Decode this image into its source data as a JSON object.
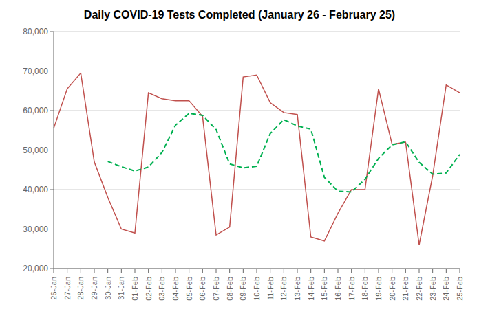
{
  "chart_data": {
    "type": "line",
    "title": "Daily COVID-19 Tests Completed (January 26 - February 25)",
    "categories": [
      "26-Jan",
      "27-Jan",
      "28-Jan",
      "29-Jan",
      "30-Jan",
      "31-Jan",
      "01-Feb",
      "02-Feb",
      "03-Feb",
      "04-Feb",
      "05-Feb",
      "06-Feb",
      "07-Feb",
      "08-Feb",
      "09-Feb",
      "10-Feb",
      "11-Feb",
      "12-Feb",
      "13-Feb",
      "14-Feb",
      "15-Feb",
      "16-Feb",
      "17-Feb",
      "18-Feb",
      "19-Feb",
      "20-Feb",
      "21-Feb",
      "22-Feb",
      "23-Feb",
      "24-Feb",
      "25-Feb"
    ],
    "series": [
      {
        "color": "#c0504d",
        "line_style": "solid",
        "values": [
          55500,
          65500,
          69500,
          47000,
          38000,
          30000,
          29000,
          64500,
          63000,
          62500,
          62500,
          58500,
          28500,
          30500,
          68500,
          69000,
          62000,
          59500,
          59000,
          28000,
          27000,
          34000,
          40000,
          40000,
          65500,
          51500,
          52000,
          26000,
          43500,
          66500,
          64500
        ]
      },
      {
        "color": "#00b050",
        "line_style": "dashed",
        "values": [
          null,
          null,
          null,
          null,
          47100,
          45800,
          44700,
          45700,
          49400,
          56300,
          59300,
          58800,
          55200,
          46500,
          45500,
          45900,
          54200,
          57700,
          56100,
          55300,
          43100,
          39600,
          39400,
          42600,
          47900,
          51300,
          52100,
          46900,
          43900,
          44200,
          48900
        ]
      }
    ],
    "ylim": [
      20000,
      80000
    ],
    "yticks": [
      {
        "value": 20000,
        "label": "20,000"
      },
      {
        "value": 30000,
        "label": "30,000"
      },
      {
        "value": 40000,
        "label": "40,000"
      },
      {
        "value": 50000,
        "label": "50,000"
      },
      {
        "value": 60000,
        "label": "60,000"
      },
      {
        "value": 70000,
        "label": "70,000"
      },
      {
        "value": 80000,
        "label": "80,000"
      }
    ],
    "grid": true
  }
}
